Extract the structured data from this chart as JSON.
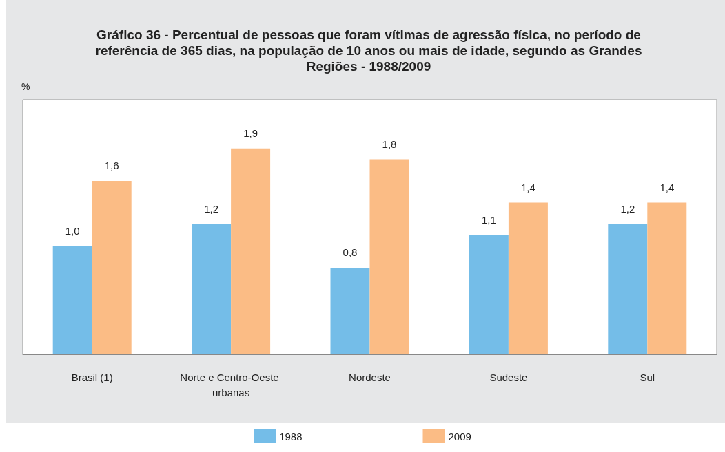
{
  "chart_data": {
    "type": "bar",
    "title": "Gráfico 36 - Percentual de pessoas que foram vítimas de agressão física, no período de referência de 365 dias, na população de 10 anos ou mais de idade, segundo as Grandes Regiões - 1988/2009",
    "ylabel": "%",
    "categories": [
      "Brasil (1)",
      "Norte e Centro-Oeste urbanas",
      "Nordeste",
      "Sudeste",
      "Sul"
    ],
    "series": [
      {
        "name": "1988",
        "color": "#74bde8",
        "values": [
          1.0,
          1.2,
          0.8,
          1.1,
          1.2
        ],
        "value_labels": [
          "1,0",
          "1,2",
          "0,8",
          "1,1",
          "1,2"
        ]
      },
      {
        "name": "2009",
        "color": "#fbbc85",
        "values": [
          1.6,
          1.9,
          1.8,
          1.4,
          1.4
        ],
        "value_labels": [
          "1,6",
          "1,9",
          "1,8",
          "1,4",
          "1,4"
        ]
      }
    ],
    "ylim": [
      0,
      2.35
    ],
    "tick_labels": "x",
    "grid": false,
    "legend": "bottom"
  }
}
